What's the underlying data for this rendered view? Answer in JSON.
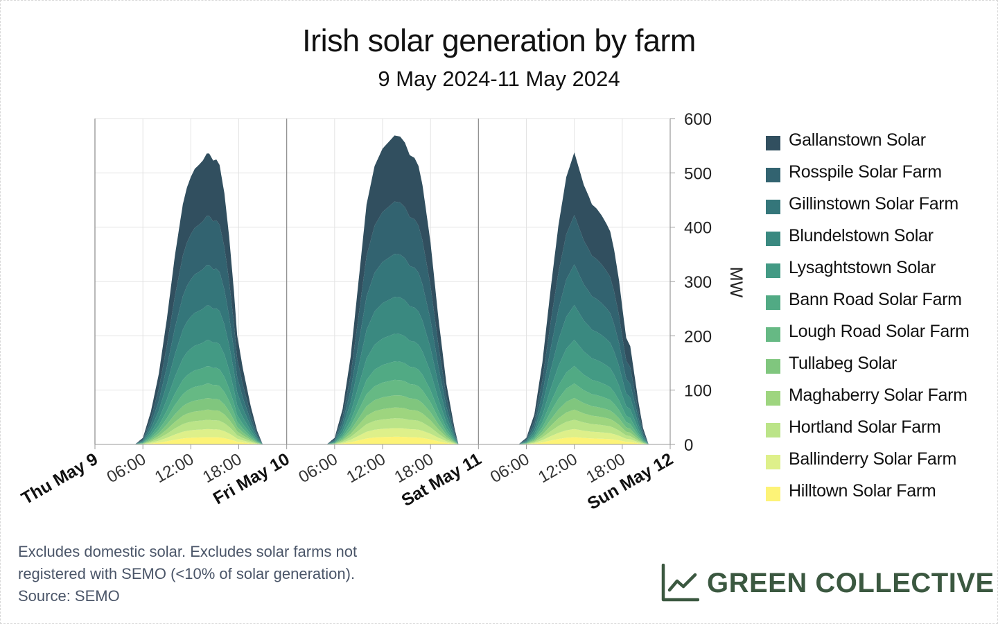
{
  "title": "Irish solar generation by farm",
  "subtitle": "9 May 2024-11 May 2024",
  "footnote": {
    "line1": "Excludes domestic solar. Excludes solar farms not",
    "line2": "registered with SEMO (<10% of solar generation).",
    "line3": "Source: SEMO"
  },
  "brand": {
    "name": "GREEN COLLECTIVE",
    "icon": "line-chart-icon",
    "color": "#3b5840"
  },
  "chart_data": {
    "type": "area",
    "stacked": true,
    "ylabel": "MW",
    "ylim": [
      0,
      600
    ],
    "yticks": [
      0,
      100,
      200,
      300,
      400,
      500,
      600
    ],
    "y_axis_position": "right",
    "xlim": [
      0,
      72
    ],
    "x_unit": "hours since Thu May 9 00:00",
    "xticks": [
      {
        "h": 0,
        "label": "Thu May 9",
        "major": true
      },
      {
        "h": 6,
        "label": "06:00",
        "major": false
      },
      {
        "h": 12,
        "label": "12:00",
        "major": false
      },
      {
        "h": 18,
        "label": "18:00",
        "major": false
      },
      {
        "h": 24,
        "label": "Fri May 10",
        "major": true
      },
      {
        "h": 30,
        "label": "06:00",
        "major": false
      },
      {
        "h": 36,
        "label": "12:00",
        "major": false
      },
      {
        "h": 42,
        "label": "18:00",
        "major": false
      },
      {
        "h": 48,
        "label": "Sat May 11",
        "major": true
      },
      {
        "h": 54,
        "label": "06:00",
        "major": false
      },
      {
        "h": 60,
        "label": "12:00",
        "major": false
      },
      {
        "h": 66,
        "label": "18:00",
        "major": false
      },
      {
        "h": 72,
        "label": "Sun May 12",
        "major": true
      }
    ],
    "grid": true,
    "legend_position": "right",
    "total_mw": [
      {
        "h": 5.0,
        "v": 0
      },
      {
        "h": 6.0,
        "v": 12
      },
      {
        "h": 7.0,
        "v": 60
      },
      {
        "h": 8.0,
        "v": 130
      },
      {
        "h": 9.0,
        "v": 230
      },
      {
        "h": 10.0,
        "v": 345
      },
      {
        "h": 11.0,
        "v": 440
      },
      {
        "h": 11.5,
        "v": 470
      },
      {
        "h": 12.0,
        "v": 490
      },
      {
        "h": 12.5,
        "v": 505
      },
      {
        "h": 13.0,
        "v": 512
      },
      {
        "h": 13.5,
        "v": 520
      },
      {
        "h": 14.0,
        "v": 533
      },
      {
        "h": 14.3,
        "v": 533
      },
      {
        "h": 14.8,
        "v": 520
      },
      {
        "h": 15.2,
        "v": 522
      },
      {
        "h": 15.6,
        "v": 512
      },
      {
        "h": 16.2,
        "v": 460
      },
      {
        "h": 16.8,
        "v": 380
      },
      {
        "h": 17.4,
        "v": 280
      },
      {
        "h": 17.8,
        "v": 200
      },
      {
        "h": 18.5,
        "v": 140
      },
      {
        "h": 19.5,
        "v": 70
      },
      {
        "h": 20.3,
        "v": 25
      },
      {
        "h": 21.0,
        "v": 0
      },
      {
        "h": 29.0,
        "v": 0
      },
      {
        "h": 30.0,
        "v": 12
      },
      {
        "h": 31.0,
        "v": 65
      },
      {
        "h": 32.0,
        "v": 160
      },
      {
        "h": 33.0,
        "v": 300
      },
      {
        "h": 34.0,
        "v": 440
      },
      {
        "h": 35.0,
        "v": 510
      },
      {
        "h": 36.0,
        "v": 542
      },
      {
        "h": 37.0,
        "v": 558
      },
      {
        "h": 37.5,
        "v": 566
      },
      {
        "h": 38.2,
        "v": 564
      },
      {
        "h": 38.8,
        "v": 553
      },
      {
        "h": 39.4,
        "v": 530
      },
      {
        "h": 40.0,
        "v": 525
      },
      {
        "h": 40.5,
        "v": 510
      },
      {
        "h": 41.0,
        "v": 475
      },
      {
        "h": 42.0,
        "v": 370
      },
      {
        "h": 43.0,
        "v": 230
      },
      {
        "h": 44.0,
        "v": 110
      },
      {
        "h": 45.0,
        "v": 30
      },
      {
        "h": 45.5,
        "v": 0
      },
      {
        "h": 53.0,
        "v": 0
      },
      {
        "h": 54.0,
        "v": 12
      },
      {
        "h": 55.0,
        "v": 55
      },
      {
        "h": 56.0,
        "v": 150
      },
      {
        "h": 57.0,
        "v": 280
      },
      {
        "h": 58.0,
        "v": 400
      },
      {
        "h": 59.0,
        "v": 490
      },
      {
        "h": 60.0,
        "v": 535
      },
      {
        "h": 60.6,
        "v": 505
      },
      {
        "h": 61.2,
        "v": 475
      },
      {
        "h": 61.8,
        "v": 455
      },
      {
        "h": 62.2,
        "v": 440
      },
      {
        "h": 62.8,
        "v": 432
      },
      {
        "h": 63.4,
        "v": 420
      },
      {
        "h": 64.0,
        "v": 405
      },
      {
        "h": 64.5,
        "v": 390
      },
      {
        "h": 65.0,
        "v": 355
      },
      {
        "h": 65.6,
        "v": 300
      },
      {
        "h": 66.1,
        "v": 240
      },
      {
        "h": 66.5,
        "v": 195
      },
      {
        "h": 67.0,
        "v": 180
      },
      {
        "h": 67.5,
        "v": 130
      },
      {
        "h": 68.0,
        "v": 80
      },
      {
        "h": 68.6,
        "v": 30
      },
      {
        "h": 69.3,
        "v": 0
      }
    ],
    "series": [
      {
        "name": "Hilltown Solar Farm",
        "color": "#fdf377",
        "share": 0.025
      },
      {
        "name": "Ballinderry Solar Farm",
        "color": "#def08a",
        "share": 0.028
      },
      {
        "name": "Hortland Solar Farm",
        "color": "#bbe488",
        "share": 0.032
      },
      {
        "name": "Maghaberry Solar Farm",
        "color": "#9ed57f",
        "share": 0.035
      },
      {
        "name": "Tullabeg Solar",
        "color": "#80c67e",
        "share": 0.04
      },
      {
        "name": "Lough Road Solar Farm",
        "color": "#66b984",
        "share": 0.05
      },
      {
        "name": "Bann Road Solar Farm",
        "color": "#51aa84",
        "share": 0.06
      },
      {
        "name": "Lysaghtstown Solar",
        "color": "#439a84",
        "share": 0.09
      },
      {
        "name": "Blundelstown Solar",
        "color": "#3a8980",
        "share": 0.12
      },
      {
        "name": "Gillinstown Solar Farm",
        "color": "#34767a",
        "share": 0.14
      },
      {
        "name": "Rosspile Solar Farm",
        "color": "#326370",
        "share": 0.17
      },
      {
        "name": "Gallanstown Solar",
        "color": "#314f5f",
        "share": 0.215
      }
    ],
    "legend_order": [
      "Gallanstown Solar",
      "Rosspile Solar Farm",
      "Gillinstown Solar Farm",
      "Blundelstown Solar",
      "Lysaghtstown Solar",
      "Bann Road Solar Farm",
      "Lough Road Solar Farm",
      "Tullabeg Solar",
      "Maghaberry Solar Farm",
      "Hortland Solar Farm",
      "Ballinderry Solar Farm",
      "Hilltown Solar Farm"
    ]
  }
}
